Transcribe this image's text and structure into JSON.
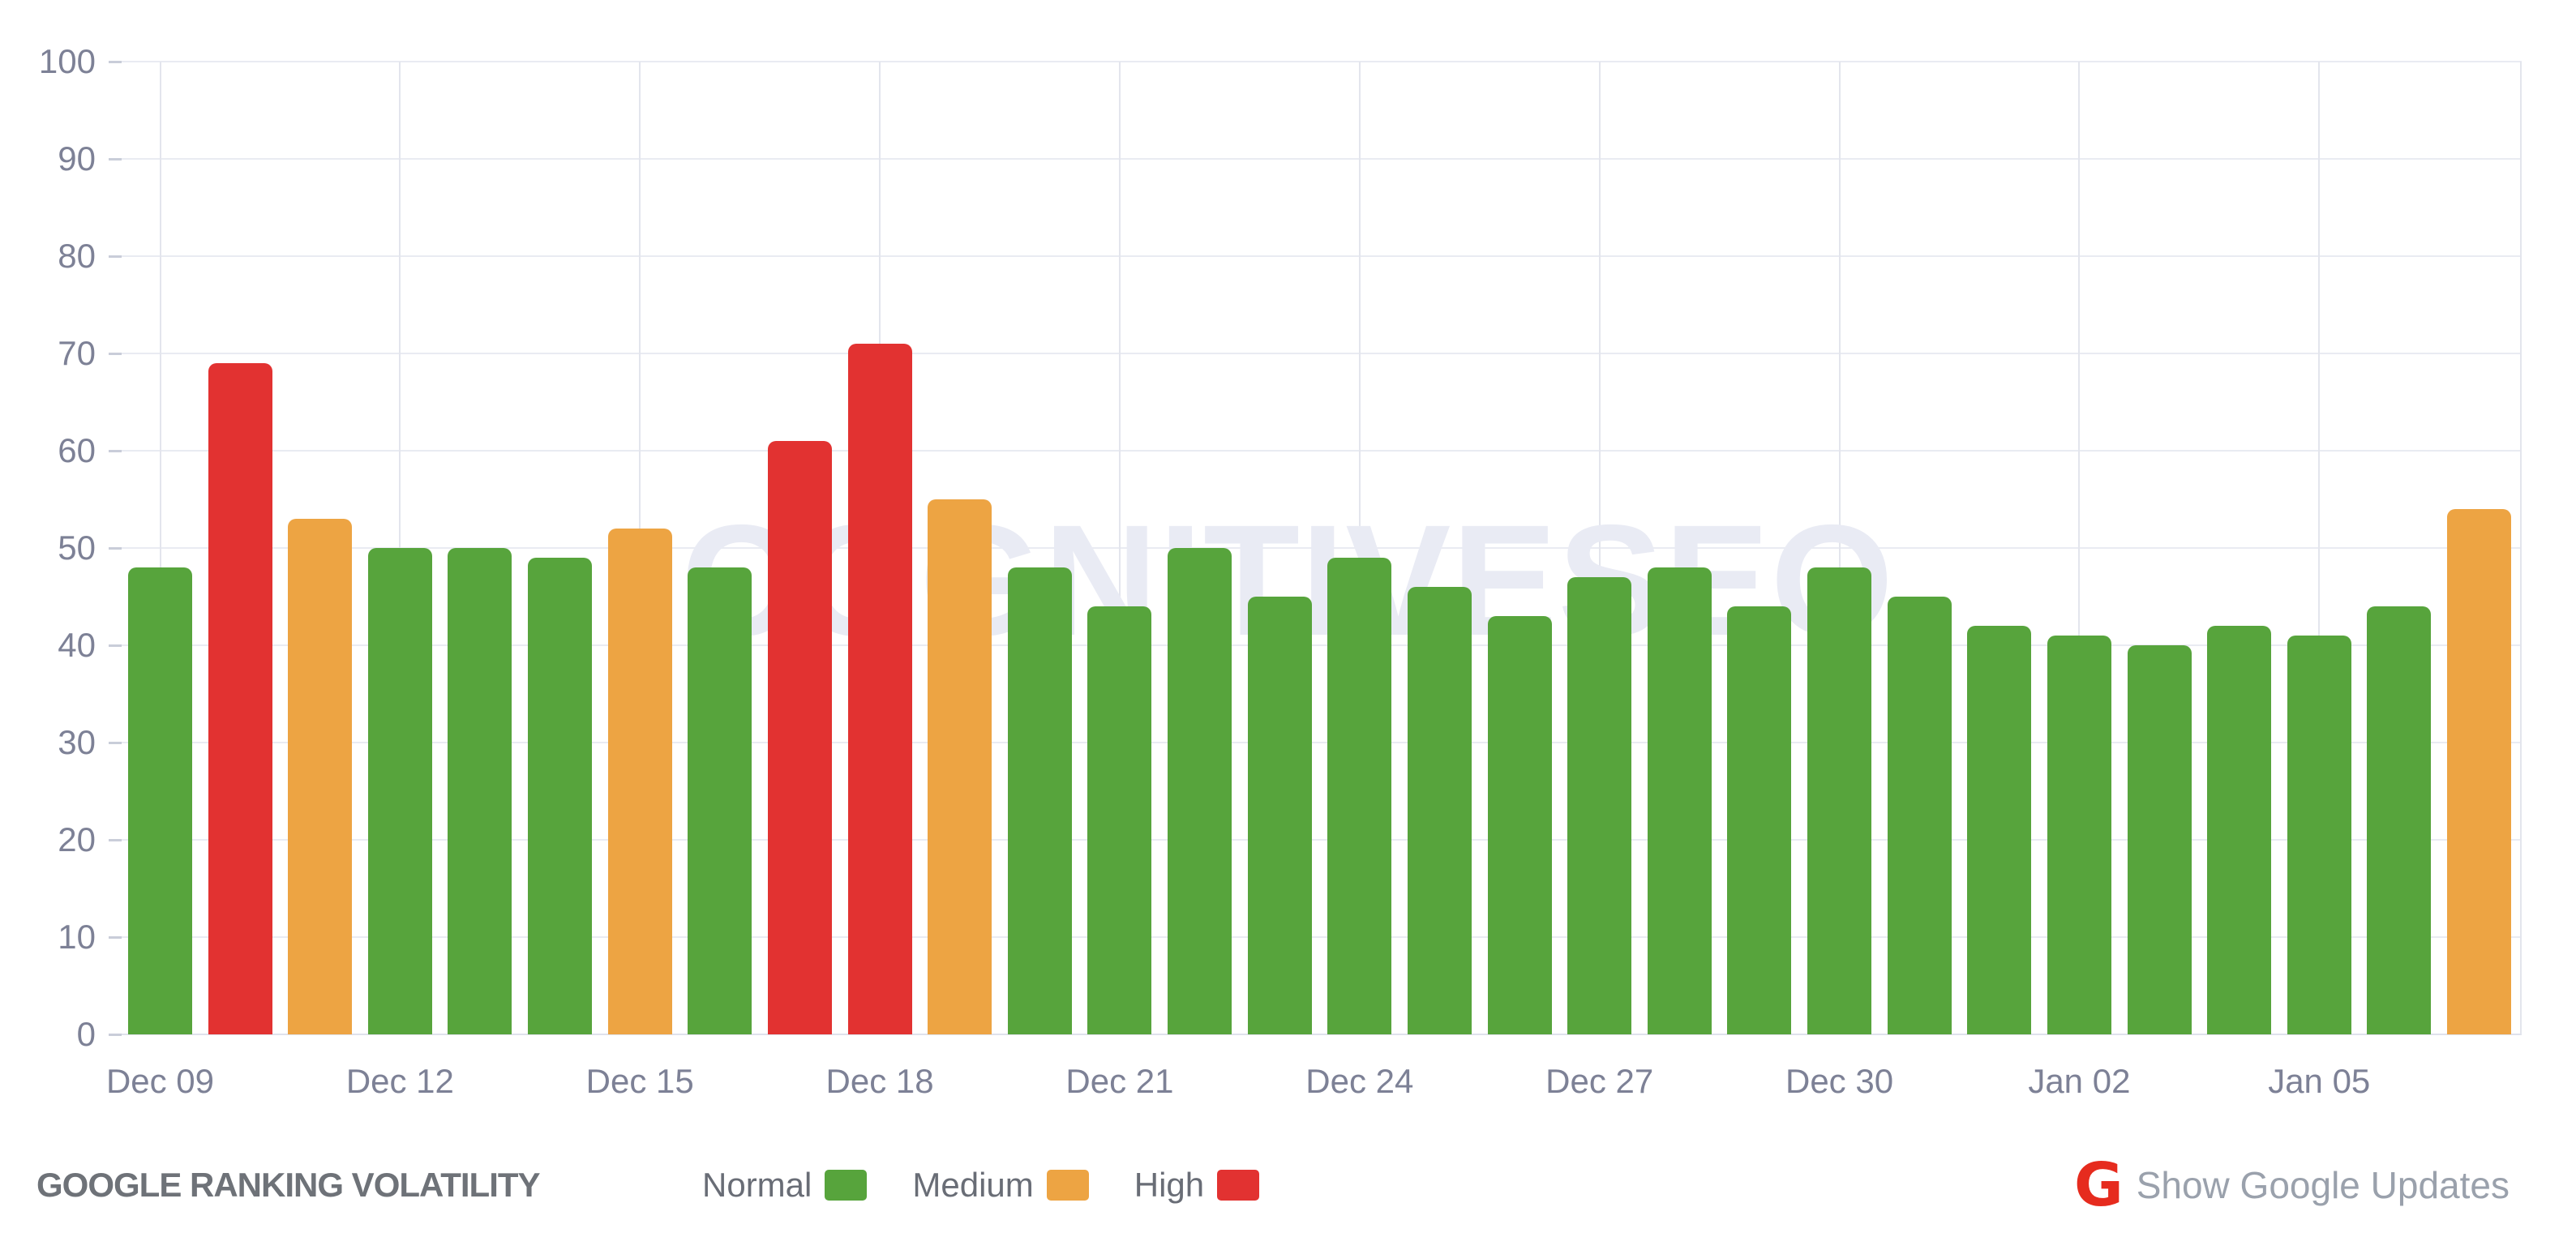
{
  "chart_data": {
    "type": "bar",
    "title": "GOOGLE RANKING VOLATILITY",
    "watermark": "COGNITIVESEO",
    "ylabel": "",
    "xlabel": "",
    "ylim": [
      0,
      100
    ],
    "ytick_step": 10,
    "grid": true,
    "legend_position": "bottom-center",
    "categories": [
      "Dec 09",
      "Dec 10",
      "Dec 11",
      "Dec 12",
      "Dec 13",
      "Dec 14",
      "Dec 15",
      "Dec 16",
      "Dec 17",
      "Dec 18",
      "Dec 19",
      "Dec 20",
      "Dec 21",
      "Dec 22",
      "Dec 23",
      "Dec 24",
      "Dec 25",
      "Dec 26",
      "Dec 27",
      "Dec 28",
      "Dec 29",
      "Dec 30",
      "Dec 31",
      "Jan 01",
      "Jan 02",
      "Jan 03",
      "Jan 04",
      "Jan 05",
      "Jan 06",
      "Jan 07"
    ],
    "values": [
      48,
      69,
      53,
      50,
      50,
      49,
      52,
      48,
      61,
      71,
      55,
      48,
      44,
      50,
      45,
      49,
      46,
      43,
      47,
      48,
      44,
      48,
      45,
      42,
      41,
      40,
      42,
      41,
      44,
      54
    ],
    "levels": [
      "normal",
      "high",
      "medium",
      "normal",
      "normal",
      "normal",
      "medium",
      "normal",
      "high",
      "high",
      "medium",
      "normal",
      "normal",
      "normal",
      "normal",
      "normal",
      "normal",
      "normal",
      "normal",
      "normal",
      "normal",
      "normal",
      "normal",
      "normal",
      "normal",
      "normal",
      "normal",
      "normal",
      "normal",
      "medium"
    ],
    "xtick_labels": [
      "Dec 09",
      "Dec 12",
      "Dec 15",
      "Dec 18",
      "Dec 21",
      "Dec 24",
      "Dec 27",
      "Dec 30",
      "Jan 02",
      "Jan 05"
    ],
    "xtick_every": 3,
    "colors": {
      "normal": "#57a43c",
      "medium": "#eda443",
      "high": "#e23231"
    },
    "grid_color": "#e9ebf2",
    "axis_label_color": "#7d8196",
    "watermark_color": "#e9ebf4",
    "legend": [
      {
        "label": "Normal",
        "level": "normal"
      },
      {
        "label": "Medium",
        "level": "medium"
      },
      {
        "label": "High",
        "level": "high"
      }
    ]
  },
  "footer": {
    "title": "GOOGLE RANKING VOLATILITY",
    "google_g": "G",
    "google_updates_label": "Show Google Updates"
  }
}
